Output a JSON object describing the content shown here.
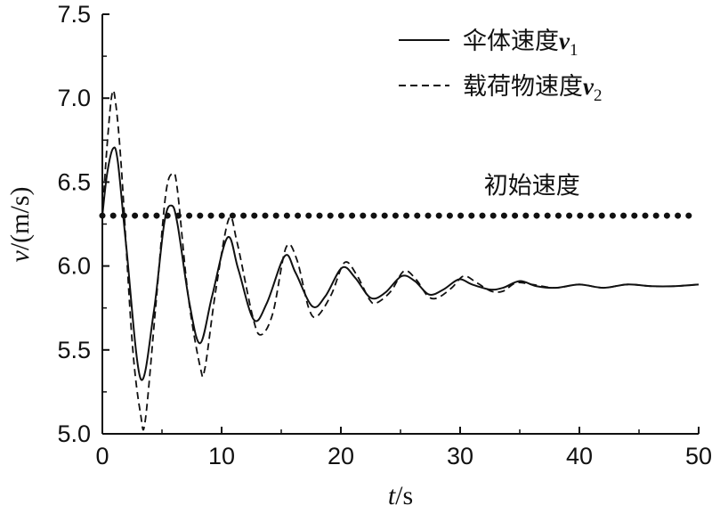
{
  "chart_data": {
    "type": "line",
    "title": "",
    "xlabel": {
      "var": "t",
      "unit": "/s"
    },
    "ylabel": {
      "var": "v",
      "unit": "/(m/s)"
    },
    "xlim": [
      0,
      50
    ],
    "ylim": [
      5.0,
      7.5
    ],
    "xticks": [
      0,
      10,
      20,
      30,
      40,
      50
    ],
    "xtick_labels": [
      "0",
      "10",
      "20",
      "30",
      "40",
      "50"
    ],
    "yticks": [
      5.0,
      5.5,
      6.0,
      6.5,
      7.0,
      7.5
    ],
    "ytick_labels": [
      "5.0",
      "5.5",
      "6.0",
      "6.5",
      "7.0",
      "7.5"
    ],
    "grid": false,
    "legend_position": "top-right",
    "series": [
      {
        "name": "伞体速度v1",
        "label_text": "伞体速度",
        "label_var": "v",
        "label_sub": "1",
        "style": "solid",
        "color": "#111111",
        "x": [
          0,
          0.4,
          0.9,
          1.3,
          2.0,
          3.2,
          4.3,
          5.2,
          5.8,
          6.3,
          7.3,
          8.2,
          9.2,
          10.5,
          11.4,
          12.7,
          13.8,
          15.3,
          16.2,
          17.6,
          18.7,
          20.1,
          21.2,
          22.5,
          23.7,
          25.1,
          26.2,
          27.4,
          28.6,
          29.9,
          31.0,
          32.5,
          33.6,
          35.0,
          36.4,
          38.0,
          40.0,
          42.0,
          44.0,
          46.0,
          48.0,
          50.0
        ],
        "values": [
          6.3,
          6.55,
          6.7,
          6.62,
          6.12,
          5.33,
          5.72,
          6.26,
          6.36,
          6.25,
          5.78,
          5.54,
          5.82,
          6.17,
          5.98,
          5.68,
          5.78,
          6.06,
          5.96,
          5.76,
          5.82,
          5.99,
          5.93,
          5.81,
          5.84,
          5.94,
          5.91,
          5.83,
          5.86,
          5.92,
          5.89,
          5.86,
          5.87,
          5.91,
          5.88,
          5.87,
          5.89,
          5.87,
          5.89,
          5.88,
          5.88,
          5.89
        ]
      },
      {
        "name": "载荷物速度v2",
        "label_text": "载荷物速度",
        "label_var": "v",
        "label_sub": "2",
        "style": "dashed",
        "color": "#111111",
        "x": [
          0,
          0.4,
          0.8,
          1.1,
          1.6,
          2.5,
          3.2,
          3.6,
          4.5,
          5.3,
          5.9,
          6.3,
          7.2,
          8.2,
          8.6,
          9.5,
          10.6,
          11.3,
          12.6,
          13.3,
          14.3,
          15.4,
          16.3,
          17.3,
          18.0,
          19.2,
          20.3,
          21.3,
          22.4,
          23.0,
          24.2,
          25.3,
          26.3,
          27.3,
          28.1,
          29.3,
          30.3,
          31.4,
          32.6,
          33.6,
          34.7,
          36.0,
          38.0,
          40.0,
          42.0,
          44.0,
          46.0,
          48.0,
          50.0
        ],
        "values": [
          6.3,
          6.72,
          7.02,
          6.98,
          6.58,
          5.55,
          5.12,
          5.08,
          5.78,
          6.42,
          6.55,
          6.45,
          5.82,
          5.4,
          5.39,
          5.85,
          6.28,
          6.14,
          5.7,
          5.59,
          5.72,
          6.11,
          6.04,
          5.75,
          5.7,
          5.83,
          6.02,
          5.95,
          5.8,
          5.78,
          5.85,
          5.97,
          5.92,
          5.82,
          5.81,
          5.87,
          5.94,
          5.9,
          5.85,
          5.85,
          5.9,
          5.89,
          5.87,
          5.89,
          5.87,
          5.89,
          5.88,
          5.88,
          5.89
        ]
      },
      {
        "name": "初始速度",
        "style": "dotted",
        "color": "#111111",
        "x": [
          0,
          50
        ],
        "values": [
          6.3,
          6.3
        ]
      }
    ],
    "annotations": [
      {
        "text": "初始速度",
        "x": 32.0,
        "y": 6.43
      }
    ]
  }
}
